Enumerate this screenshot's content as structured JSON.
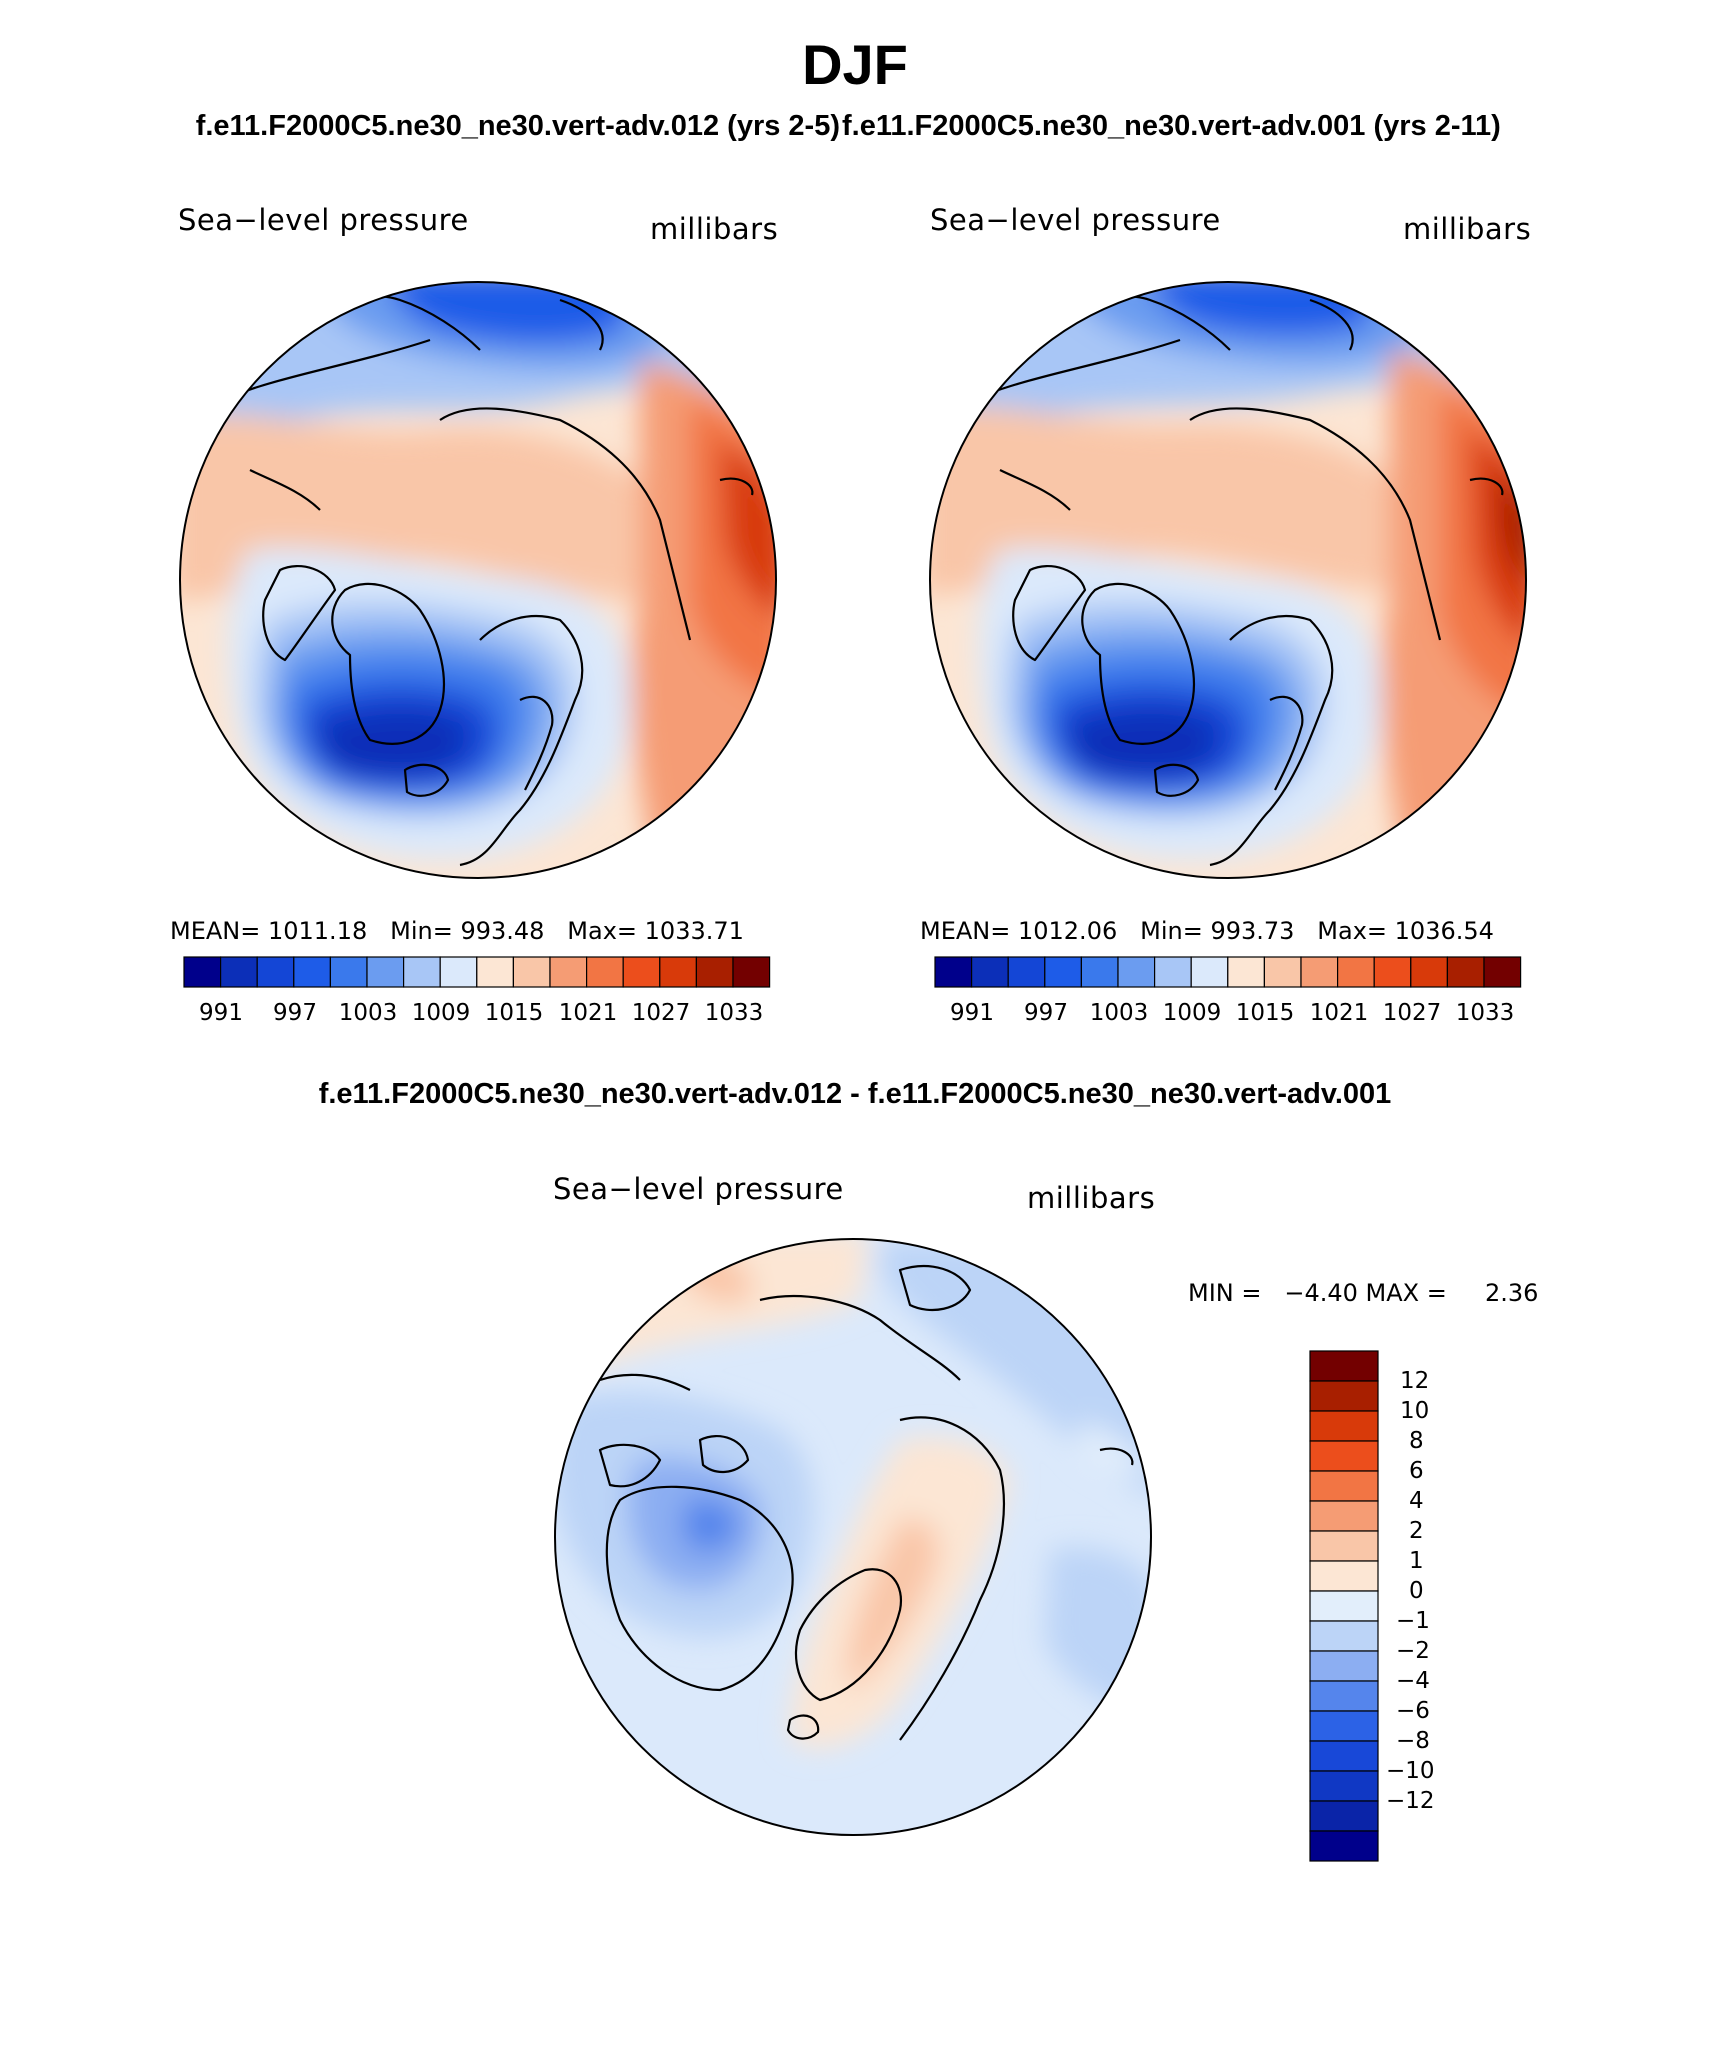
{
  "header": {
    "title": "DJF",
    "case1_label": "f.e11.F2000C5.ne30_ne30.vert-adv.012 (yrs 2-5)",
    "case2_label": "f.e11.F2000C5.ne30_ne30.vert-adv.001 (yrs 2-11)",
    "diff_label": "f.e11.F2000C5.ne30_ne30.vert-adv.012 - f.e11.F2000C5.ne30_ne30.vert-adv.001"
  },
  "panels": [
    {
      "variable": "Sea−level pressure",
      "units": "millibars",
      "stats": "MEAN= 1011.18   Min= 993.48   Max= 1033.71",
      "colorbar_ticks": [
        "991",
        "997",
        "1003",
        "1009",
        "1015",
        "1021",
        "1027",
        "1033"
      ]
    },
    {
      "variable": "Sea−level pressure",
      "units": "millibars",
      "stats": "MEAN= 1012.06   Min= 993.73   Max= 1036.54",
      "colorbar_ticks": [
        "991",
        "997",
        "1003",
        "1009",
        "1015",
        "1021",
        "1027",
        "1033"
      ]
    }
  ],
  "diff_panel": {
    "variable": "Sea−level pressure",
    "units": "millibars",
    "stats": "MIN =   −4.40 MAX =     2.36",
    "colorbar_ticks": [
      "12",
      "10",
      "8",
      "6",
      "4",
      "2",
      "1",
      "0",
      "−1",
      "−2",
      "−4",
      "−6",
      "−8",
      "−10",
      "−12"
    ]
  },
  "colors": {
    "abs_scale": [
      "#00008b",
      "#0c2fb8",
      "#1446d6",
      "#1e5ce8",
      "#3a79ec",
      "#6b9cf0",
      "#a8c6f6",
      "#dbe9fb",
      "#fce6d4",
      "#f9c6a8",
      "#f59c74",
      "#f27544",
      "#ec4e1c",
      "#d83a0a",
      "#a81f00",
      "#730000"
    ],
    "diff_scale": [
      "#00008b",
      "#0a24a8",
      "#1038c4",
      "#1848d8",
      "#2c62e6",
      "#5585ec",
      "#8caef2",
      "#bcd4f7",
      "#e2eefb",
      "#fce6d4",
      "#f9c6a8",
      "#f59c74",
      "#f27544",
      "#ec4e1c",
      "#d83a0a",
      "#a81f00",
      "#730000"
    ]
  }
}
